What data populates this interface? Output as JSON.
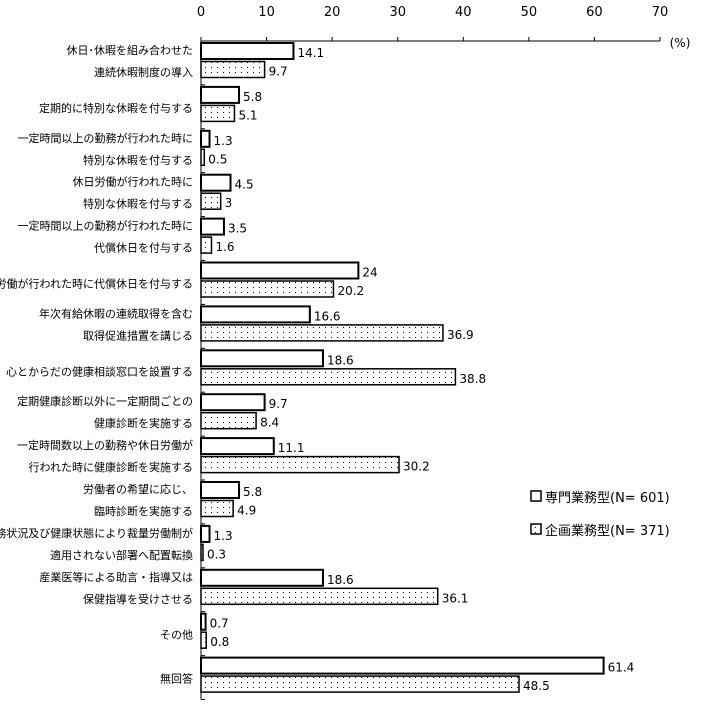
{
  "chart_data": {
    "type": "bar",
    "orientation": "horizontal",
    "unit_label": "(%)",
    "xlim": [
      0,
      70
    ],
    "xticks": [
      0,
      10,
      20,
      30,
      40,
      50,
      60,
      70
    ],
    "grid": false,
    "legend_position": "right",
    "categories": [
      [
        "休日･休暇を組み合わせた",
        "連続休暇制度の導入"
      ],
      [
        "定期的に特別な休暇を付与する"
      ],
      [
        "一定時間以上の勤務が行われた時に",
        "特別な休暇を付与する"
      ],
      [
        "休日労働が行われた時に",
        "特別な休暇を付与する"
      ],
      [
        "一定時間以上の勤務が行われた時に",
        "代償休日を付与する"
      ],
      [
        "休日労働が行われた時に代償休日を付与する"
      ],
      [
        "年次有給休暇の連続取得を含む",
        "取得促進措置を講じる"
      ],
      [
        "心とからだの健康相談窓口を設置する"
      ],
      [
        "定期健康診断以外に一定期間ごとの",
        "健康診断を実施する"
      ],
      [
        "一定時間数以上の勤務や休日労働が",
        "行われた時に健康診断を実施する"
      ],
      [
        "労働者の希望に応じ、",
        "臨時診断を実施する"
      ],
      [
        "勤務状況及び健康状態により裁量労働制が",
        "適用されない部署へ配置転換"
      ],
      [
        "産業医等による助言・指導又は",
        "保健指導を受けさせる"
      ],
      [
        "その他"
      ],
      [
        "無回答"
      ]
    ],
    "series": [
      {
        "name": "専門業務型(N= 601)",
        "fill": "white",
        "values": [
          14.1,
          5.8,
          1.3,
          4.5,
          3.5,
          24,
          16.6,
          18.6,
          9.7,
          11.1,
          5.8,
          1.3,
          18.6,
          0.7,
          61.4
        ]
      },
      {
        "name": "企画業務型(N= 371)",
        "fill": "dotted",
        "values": [
          9.7,
          5.1,
          0.5,
          3,
          1.6,
          20.2,
          36.9,
          38.8,
          8.4,
          30.2,
          4.9,
          0.3,
          36.1,
          0.8,
          48.5
        ]
      }
    ]
  }
}
